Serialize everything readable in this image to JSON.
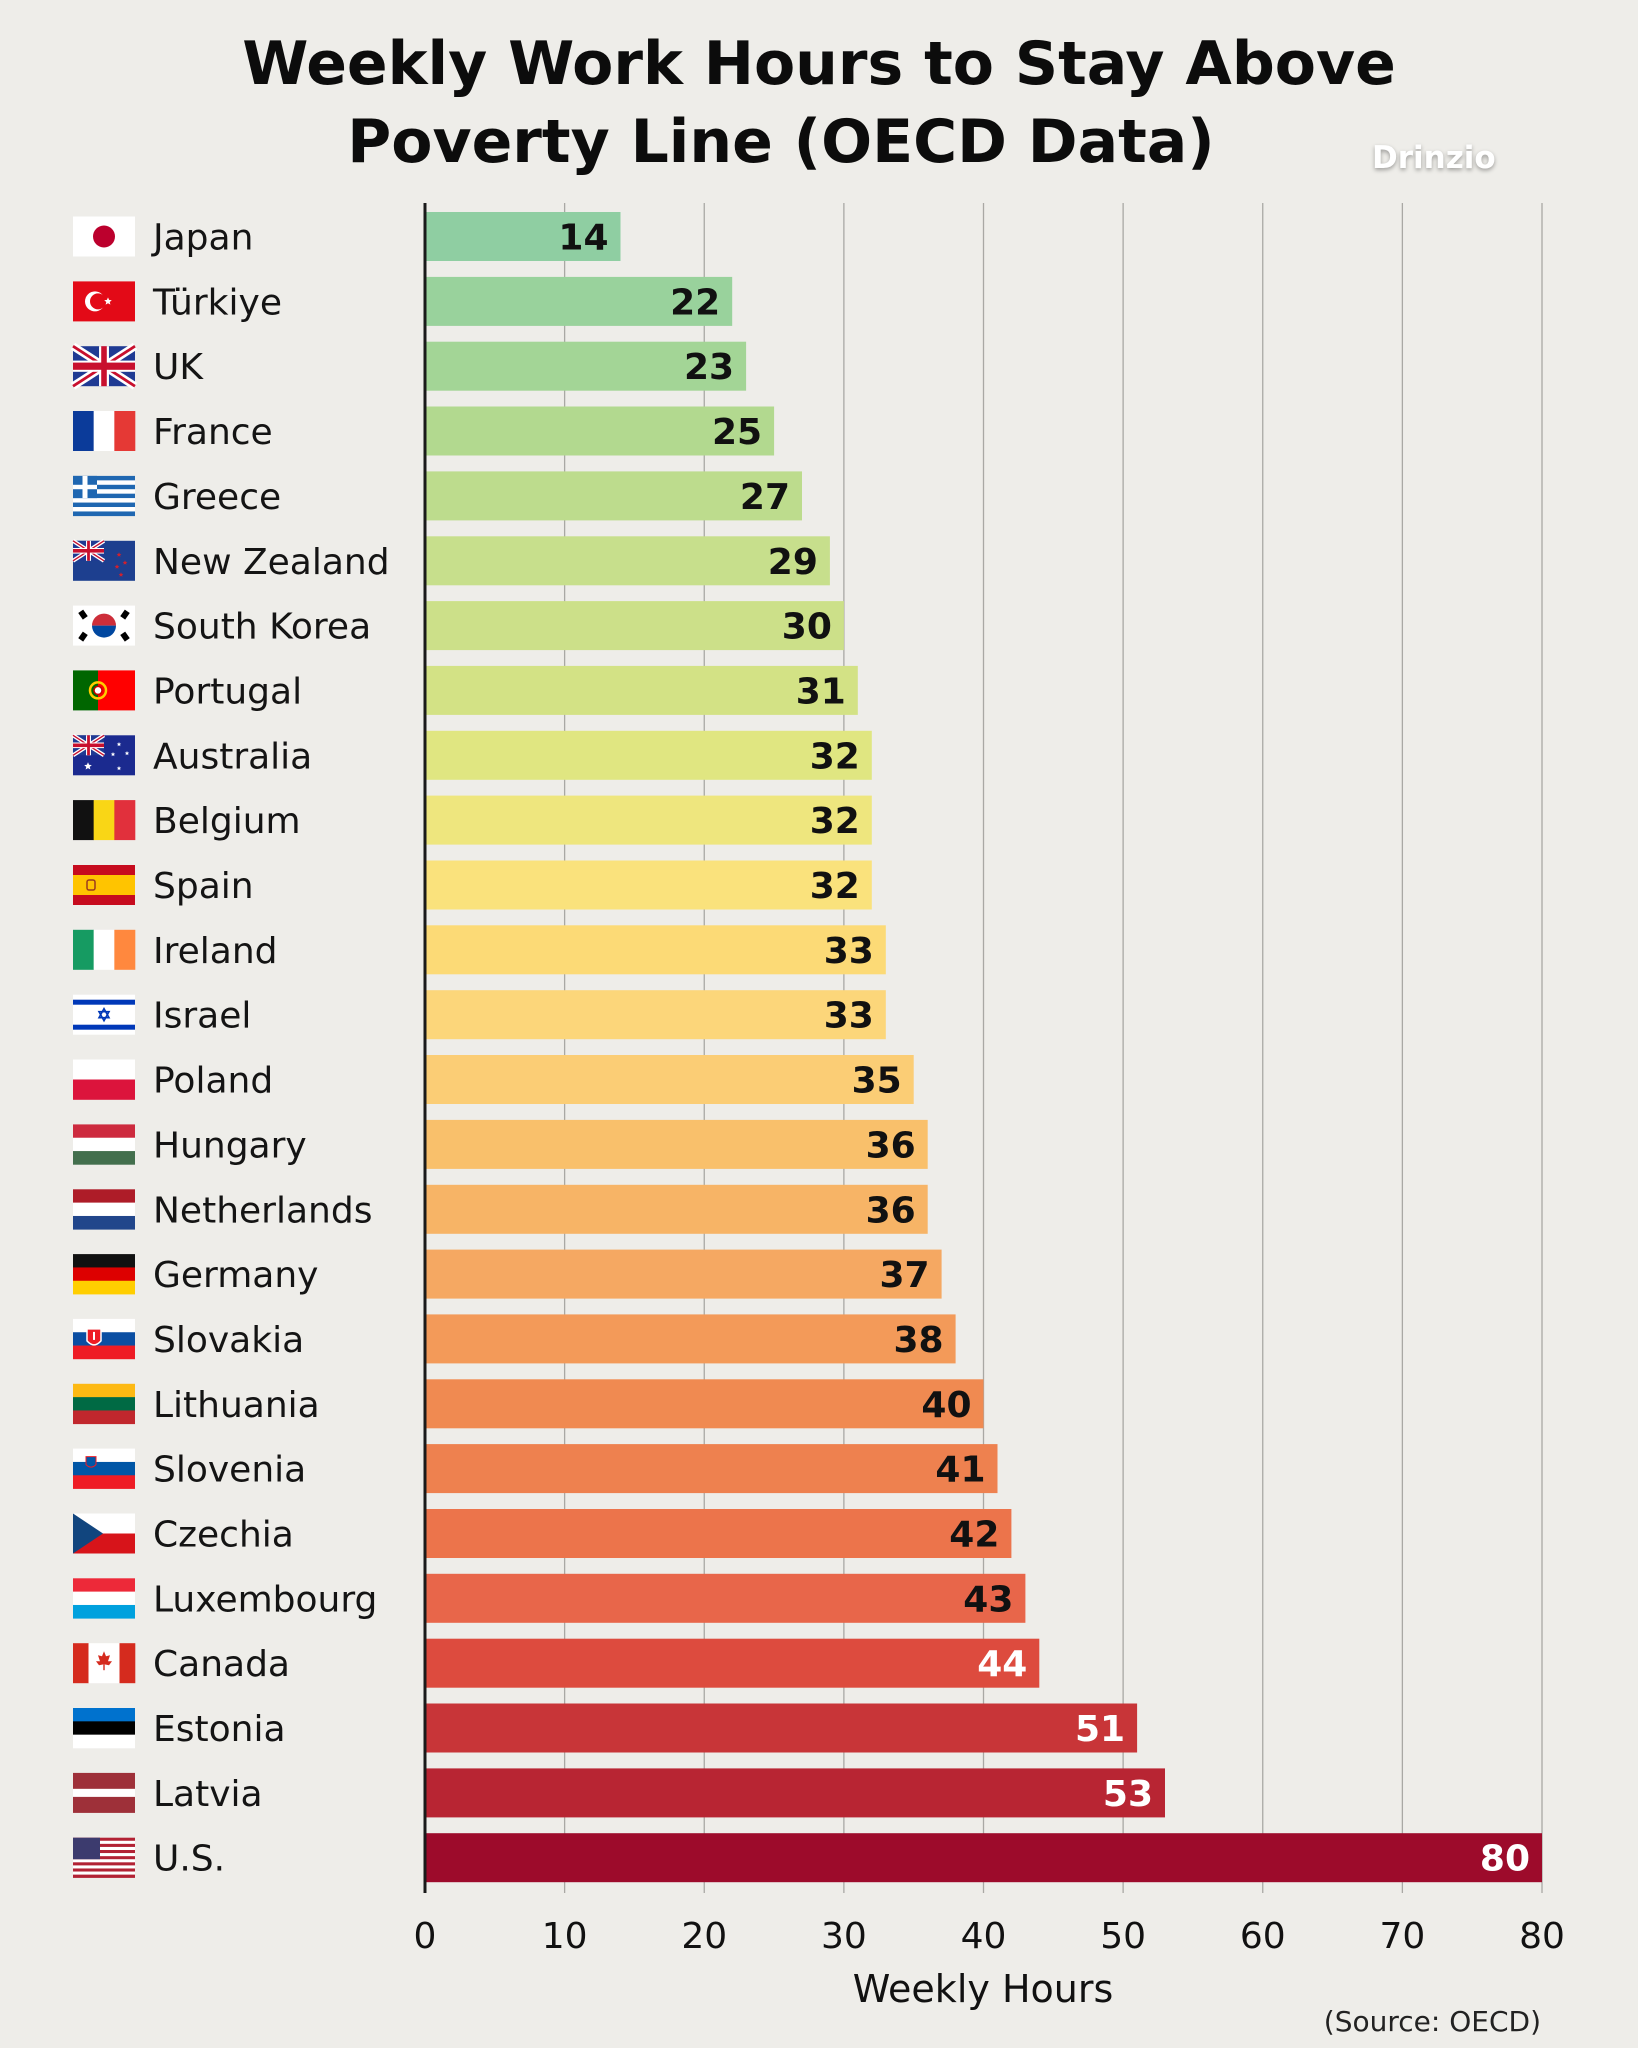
{
  "chart_data": {
    "type": "bar",
    "orientation": "horizontal",
    "title": "Weekly Work Hours to Stay Above Poverty Line (OECD Data)",
    "title_lines": [
      "Weekly Work Hours to Stay Above",
      "Poverty Line (OECD Data)"
    ],
    "watermark": "Drinzio",
    "xlabel": "Weekly Hours",
    "ylabel": "",
    "xlim": [
      0,
      80
    ],
    "xticks": [
      0,
      10,
      20,
      30,
      40,
      50,
      60,
      70,
      80
    ],
    "grid": true,
    "source": "(Source: OECD)",
    "categories": [
      "Japan",
      "Türkiye",
      "UK",
      "France",
      "Greece",
      "New Zealand",
      "South Korea",
      "Portugal",
      "Australia",
      "Belgium",
      "Spain",
      "Ireland",
      "Israel",
      "Poland",
      "Hungary",
      "Netherlands",
      "Germany",
      "Slovakia",
      "Lithuania",
      "Slovenia",
      "Czechia",
      "Luxembourg",
      "Canada",
      "Estonia",
      "Latvia",
      "U.S."
    ],
    "values": [
      14,
      22,
      23,
      25,
      27,
      29,
      30,
      31,
      32,
      32,
      32,
      33,
      33,
      35,
      36,
      36,
      37,
      38,
      40,
      41,
      42,
      43,
      44,
      51,
      53,
      80
    ],
    "bar_colors": [
      "#8fcea2",
      "#99d29c",
      "#a3d596",
      "#b2d98f",
      "#bddc8d",
      "#c7df8c",
      "#cce089",
      "#d3e285",
      "#e0e681",
      "#eee67e",
      "#fae27c",
      "#fcda76",
      "#fcd67a",
      "#fbcd75",
      "#f9c06b",
      "#f7b466",
      "#f5a862",
      "#f39a59",
      "#f08a51",
      "#ee814f",
      "#ec744b",
      "#e8664a",
      "#dd4b3e",
      "#c83538",
      "#b82533",
      "#9d0b2b"
    ],
    "label_colors": [
      "#111111",
      "#111111",
      "#111111",
      "#111111",
      "#111111",
      "#111111",
      "#111111",
      "#111111",
      "#111111",
      "#111111",
      "#111111",
      "#111111",
      "#111111",
      "#111111",
      "#111111",
      "#111111",
      "#111111",
      "#111111",
      "#111111",
      "#111111",
      "#111111",
      "#111111",
      "#ffffff",
      "#ffffff",
      "#ffffff",
      "#ffffff"
    ],
    "flag_icons": [
      "japan-flag-icon",
      "turkiye-flag-icon",
      "uk-flag-icon",
      "france-flag-icon",
      "greece-flag-icon",
      "new-zealand-flag-icon",
      "south-korea-flag-icon",
      "portugal-flag-icon",
      "australia-flag-icon",
      "belgium-flag-icon",
      "spain-flag-icon",
      "ireland-flag-icon",
      "israel-flag-icon",
      "poland-flag-icon",
      "hungary-flag-icon",
      "netherlands-flag-icon",
      "germany-flag-icon",
      "slovakia-flag-icon",
      "lithuania-flag-icon",
      "slovenia-flag-icon",
      "czechia-flag-icon",
      "luxembourg-flag-icon",
      "canada-flag-icon",
      "estonia-flag-icon",
      "latvia-flag-icon",
      "us-flag-icon"
    ]
  }
}
